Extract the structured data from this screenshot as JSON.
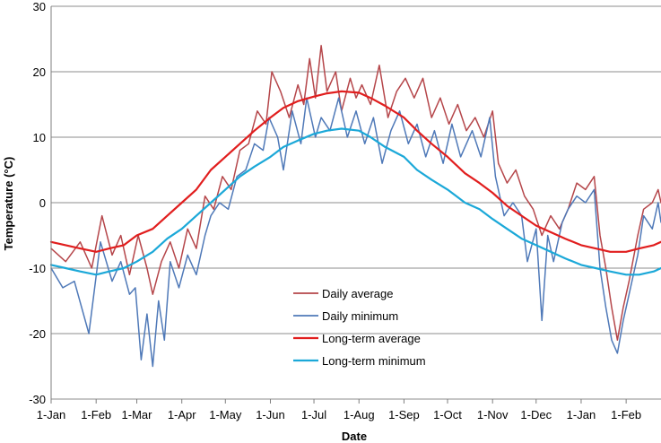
{
  "chart_data": {
    "type": "line",
    "title": "",
    "xlabel": "Date",
    "ylabel": "Temperature (°C)",
    "ylim": [
      -30,
      30
    ],
    "y_ticks": [
      30,
      20,
      10,
      0,
      -10,
      -20,
      -30
    ],
    "grid": true,
    "legend_position": "center-bottom",
    "x_ticks": [
      {
        "day": 0,
        "label": "1-Jan"
      },
      {
        "day": 31,
        "label": "1-Feb"
      },
      {
        "day": 59,
        "label": "1-Mar"
      },
      {
        "day": 90,
        "label": "1-Apr"
      },
      {
        "day": 120,
        "label": "1-May"
      },
      {
        "day": 151,
        "label": "1-Jun"
      },
      {
        "day": 181,
        "label": "1-Jul"
      },
      {
        "day": 212,
        "label": "1-Aug"
      },
      {
        "day": 243,
        "label": "1-Sep"
      },
      {
        "day": 273,
        "label": "1-Oct"
      },
      {
        "day": 304,
        "label": "1-Nov"
      },
      {
        "day": 334,
        "label": "1-Dec"
      },
      {
        "day": 365,
        "label": "1-Jan"
      },
      {
        "day": 396,
        "label": "1-Feb"
      }
    ],
    "xlim": [
      0,
      420
    ],
    "series": [
      {
        "name": "Daily average",
        "color": "#b5464a",
        "points": [
          [
            0,
            -7
          ],
          [
            10,
            -9
          ],
          [
            20,
            -6
          ],
          [
            28,
            -10
          ],
          [
            35,
            -2
          ],
          [
            42,
            -8
          ],
          [
            48,
            -5
          ],
          [
            54,
            -11
          ],
          [
            60,
            -5
          ],
          [
            66,
            -10
          ],
          [
            70,
            -14
          ],
          [
            76,
            -9
          ],
          [
            82,
            -6
          ],
          [
            88,
            -10
          ],
          [
            94,
            -4
          ],
          [
            100,
            -7
          ],
          [
            106,
            1
          ],
          [
            112,
            -1
          ],
          [
            118,
            4
          ],
          [
            124,
            2
          ],
          [
            130,
            8
          ],
          [
            136,
            9
          ],
          [
            142,
            14
          ],
          [
            148,
            12
          ],
          [
            152,
            20
          ],
          [
            158,
            17
          ],
          [
            164,
            13
          ],
          [
            170,
            18
          ],
          [
            174,
            15
          ],
          [
            178,
            22
          ],
          [
            182,
            16
          ],
          [
            186,
            24
          ],
          [
            190,
            17
          ],
          [
            196,
            20
          ],
          [
            200,
            14
          ],
          [
            206,
            19
          ],
          [
            210,
            16
          ],
          [
            214,
            18
          ],
          [
            220,
            15
          ],
          [
            226,
            21
          ],
          [
            232,
            13
          ],
          [
            238,
            17
          ],
          [
            244,
            19
          ],
          [
            250,
            16
          ],
          [
            256,
            19
          ],
          [
            262,
            13
          ],
          [
            268,
            16
          ],
          [
            274,
            12
          ],
          [
            280,
            15
          ],
          [
            286,
            11
          ],
          [
            292,
            13
          ],
          [
            298,
            10
          ],
          [
            304,
            14
          ],
          [
            308,
            6
          ],
          [
            314,
            3
          ],
          [
            320,
            5
          ],
          [
            326,
            1
          ],
          [
            332,
            -1
          ],
          [
            338,
            -5
          ],
          [
            344,
            -2
          ],
          [
            350,
            -4
          ],
          [
            356,
            -1
          ],
          [
            362,
            3
          ],
          [
            368,
            2
          ],
          [
            374,
            4
          ],
          [
            378,
            -5
          ],
          [
            382,
            -10
          ],
          [
            386,
            -16
          ],
          [
            390,
            -21
          ],
          [
            394,
            -16
          ],
          [
            398,
            -12
          ],
          [
            404,
            -5
          ],
          [
            408,
            -1
          ],
          [
            414,
            0
          ],
          [
            418,
            2
          ],
          [
            420,
            0
          ]
        ]
      },
      {
        "name": "Daily minimum",
        "color": "#4f79b8",
        "points": [
          [
            0,
            -10
          ],
          [
            8,
            -13
          ],
          [
            16,
            -12
          ],
          [
            26,
            -20
          ],
          [
            34,
            -6
          ],
          [
            42,
            -12
          ],
          [
            48,
            -9
          ],
          [
            54,
            -14
          ],
          [
            58,
            -13
          ],
          [
            62,
            -24
          ],
          [
            66,
            -17
          ],
          [
            70,
            -25
          ],
          [
            74,
            -15
          ],
          [
            78,
            -21
          ],
          [
            82,
            -9
          ],
          [
            88,
            -13
          ],
          [
            94,
            -8
          ],
          [
            100,
            -11
          ],
          [
            106,
            -5
          ],
          [
            110,
            -2
          ],
          [
            116,
            0
          ],
          [
            122,
            -1
          ],
          [
            128,
            4
          ],
          [
            134,
            5
          ],
          [
            140,
            9
          ],
          [
            146,
            8
          ],
          [
            150,
            13
          ],
          [
            156,
            10
          ],
          [
            160,
            5
          ],
          [
            166,
            14
          ],
          [
            172,
            9
          ],
          [
            176,
            16
          ],
          [
            182,
            10
          ],
          [
            186,
            13
          ],
          [
            192,
            11
          ],
          [
            198,
            16
          ],
          [
            204,
            10
          ],
          [
            210,
            14
          ],
          [
            216,
            9
          ],
          [
            222,
            13
          ],
          [
            228,
            6
          ],
          [
            234,
            11
          ],
          [
            240,
            14
          ],
          [
            246,
            9
          ],
          [
            252,
            12
          ],
          [
            258,
            7
          ],
          [
            264,
            11
          ],
          [
            270,
            6
          ],
          [
            276,
            12
          ],
          [
            282,
            7
          ],
          [
            290,
            11
          ],
          [
            296,
            7
          ],
          [
            302,
            13
          ],
          [
            306,
            4
          ],
          [
            312,
            -2
          ],
          [
            318,
            0
          ],
          [
            324,
            -2
          ],
          [
            328,
            -9
          ],
          [
            334,
            -4
          ],
          [
            338,
            -18
          ],
          [
            342,
            -5
          ],
          [
            346,
            -9
          ],
          [
            352,
            -3
          ],
          [
            356,
            -1
          ],
          [
            362,
            1
          ],
          [
            368,
            0
          ],
          [
            374,
            2
          ],
          [
            378,
            -10
          ],
          [
            382,
            -16
          ],
          [
            386,
            -21
          ],
          [
            390,
            -23
          ],
          [
            394,
            -18
          ],
          [
            398,
            -14
          ],
          [
            404,
            -8
          ],
          [
            408,
            -2
          ],
          [
            414,
            -4
          ],
          [
            418,
            0
          ],
          [
            420,
            -3
          ]
        ]
      },
      {
        "name": "Long-term average",
        "color": "#e11e1e",
        "points": [
          [
            0,
            -6
          ],
          [
            10,
            -6.5
          ],
          [
            20,
            -7
          ],
          [
            31,
            -7.5
          ],
          [
            40,
            -7
          ],
          [
            50,
            -6.5
          ],
          [
            59,
            -5
          ],
          [
            70,
            -4
          ],
          [
            80,
            -2
          ],
          [
            90,
            0
          ],
          [
            100,
            2
          ],
          [
            110,
            5
          ],
          [
            120,
            7
          ],
          [
            130,
            9
          ],
          [
            140,
            11
          ],
          [
            151,
            13
          ],
          [
            160,
            14.5
          ],
          [
            170,
            15.5
          ],
          [
            181,
            16.2
          ],
          [
            190,
            16.7
          ],
          [
            200,
            17
          ],
          [
            212,
            16.8
          ],
          [
            220,
            16
          ],
          [
            230,
            14.8
          ],
          [
            243,
            13
          ],
          [
            252,
            11
          ],
          [
            262,
            9
          ],
          [
            273,
            7
          ],
          [
            285,
            4.5
          ],
          [
            295,
            3
          ],
          [
            304,
            1.5
          ],
          [
            314,
            -0.5
          ],
          [
            324,
            -2
          ],
          [
            334,
            -3.5
          ],
          [
            344,
            -4.5
          ],
          [
            354,
            -5.5
          ],
          [
            365,
            -6.5
          ],
          [
            375,
            -7
          ],
          [
            385,
            -7.5
          ],
          [
            396,
            -7.5
          ],
          [
            405,
            -7
          ],
          [
            415,
            -6.5
          ],
          [
            420,
            -6
          ]
        ]
      },
      {
        "name": "Long-term minimum",
        "color": "#1ba8d8",
        "points": [
          [
            0,
            -9.5
          ],
          [
            10,
            -10
          ],
          [
            20,
            -10.5
          ],
          [
            31,
            -11
          ],
          [
            40,
            -10.5
          ],
          [
            50,
            -10
          ],
          [
            59,
            -9
          ],
          [
            70,
            -7.5
          ],
          [
            80,
            -5.5
          ],
          [
            90,
            -4
          ],
          [
            100,
            -2
          ],
          [
            110,
            0
          ],
          [
            120,
            2
          ],
          [
            130,
            4
          ],
          [
            140,
            5.5
          ],
          [
            151,
            7
          ],
          [
            160,
            8.5
          ],
          [
            170,
            9.5
          ],
          [
            181,
            10.5
          ],
          [
            190,
            11
          ],
          [
            200,
            11.3
          ],
          [
            212,
            11
          ],
          [
            220,
            10
          ],
          [
            230,
            8.5
          ],
          [
            243,
            7
          ],
          [
            252,
            5
          ],
          [
            262,
            3.5
          ],
          [
            273,
            2
          ],
          [
            285,
            0
          ],
          [
            295,
            -1
          ],
          [
            304,
            -2.5
          ],
          [
            314,
            -4
          ],
          [
            324,
            -5.5
          ],
          [
            334,
            -6.5
          ],
          [
            344,
            -7.5
          ],
          [
            354,
            -8.5
          ],
          [
            365,
            -9.5
          ],
          [
            375,
            -10
          ],
          [
            385,
            -10.5
          ],
          [
            396,
            -11
          ],
          [
            405,
            -11
          ],
          [
            415,
            -10.5
          ],
          [
            420,
            -10
          ]
        ]
      }
    ]
  }
}
